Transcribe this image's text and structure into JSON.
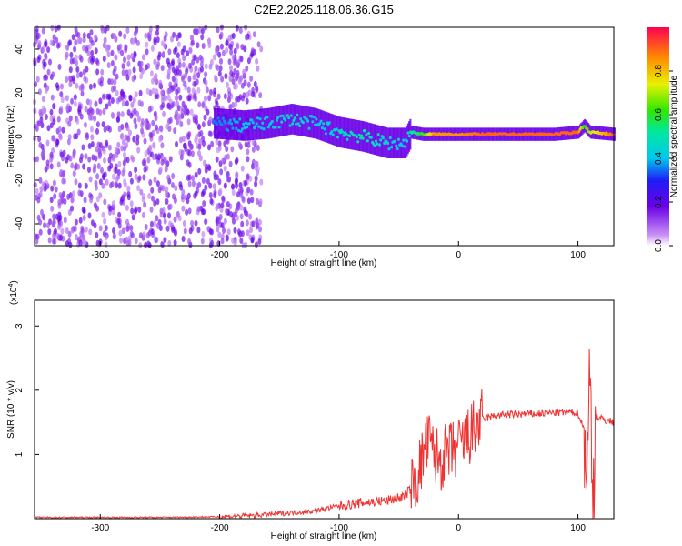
{
  "title": "C2E2.2025.118.06.36.G15",
  "chart_data": [
    {
      "type": "heatmap",
      "xlabel": "Height of straight line (km)",
      "ylabel": "Frequency (Hz)",
      "xlim": [
        -355,
        130
      ],
      "ylim": [
        -50,
        50
      ],
      "xticks": [
        -300,
        -200,
        -100,
        0,
        100
      ],
      "yticks": [
        -40,
        -20,
        0,
        20,
        40
      ],
      "colorbar": {
        "label": "Normalized spectral amplitude",
        "range": [
          0,
          1
        ],
        "ticks": [
          "0.0",
          "0.2",
          "0.4",
          "0.6",
          "0.8"
        ],
        "tick_values": [
          0.0,
          0.2,
          0.4,
          0.6,
          0.8
        ],
        "colormap": "rainbow"
      },
      "ridge": {
        "x": [
          -205,
          -180,
          -160,
          -140,
          -120,
          -100,
          -80,
          -60,
          -45,
          -40,
          -30,
          -20,
          0,
          20,
          50,
          80,
          100,
          105,
          110,
          130
        ],
        "freq_hz": [
          6,
          5,
          6,
          8,
          6,
          2,
          0,
          -3,
          -3,
          2,
          1,
          1,
          1,
          1,
          1,
          1,
          2,
          5,
          2,
          1
        ],
        "amplitude": [
          0.35,
          0.4,
          0.4,
          0.45,
          0.4,
          0.45,
          0.5,
          0.45,
          0.4,
          0.5,
          0.6,
          0.85,
          0.85,
          0.9,
          0.9,
          0.9,
          0.9,
          0.6,
          0.7,
          0.9
        ]
      }
    },
    {
      "type": "line",
      "xlabel": "Height of straight line (km)",
      "ylabel": "SNR (10 * v/v)",
      "multiplier_label": "(x10",
      "multiplier_exp": "4",
      "xlim": [
        -355,
        130
      ],
      "ylim": [
        0,
        3.4
      ],
      "xticks": [
        -300,
        -200,
        -100,
        0,
        100
      ],
      "yticks": [
        1,
        2,
        3
      ],
      "color": "#ee3333",
      "series": [
        {
          "x": [
            -355,
            -300,
            -250,
            -200,
            -170,
            -150,
            -120,
            -100,
            -80,
            -60,
            -45,
            -35,
            -30,
            -25,
            -20,
            -15,
            -10,
            -5,
            0,
            10,
            20,
            30,
            40,
            60,
            80,
            90,
            100,
            105,
            108,
            110,
            112,
            115,
            120,
            130
          ],
          "values": [
            0.02,
            0.02,
            0.02,
            0.03,
            0.05,
            0.08,
            0.12,
            0.2,
            0.25,
            0.28,
            0.35,
            0.6,
            0.95,
            1.2,
            1.0,
            0.9,
            1.0,
            1.05,
            1.1,
            1.3,
            1.55,
            1.6,
            1.62,
            1.63,
            1.65,
            1.66,
            1.65,
            1.4,
            0.8,
            2.5,
            0.2,
            1.6,
            1.55,
            1.5
          ]
        }
      ]
    }
  ]
}
